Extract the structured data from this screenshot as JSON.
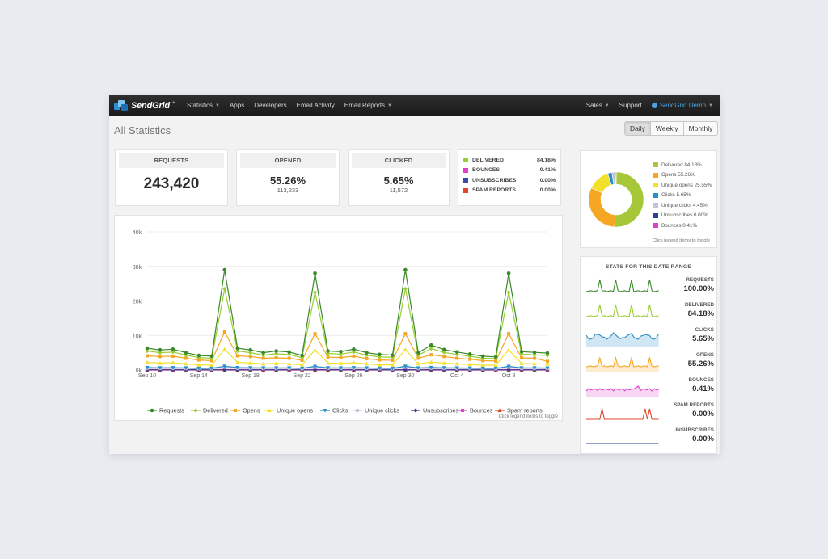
{
  "navbar": {
    "brand": "SendGrid",
    "brand_plus": "+",
    "left_items": [
      "Statistics",
      "Apps",
      "Developers",
      "Email Activity",
      "Email Reports"
    ],
    "right_items": [
      "Sales",
      "Support"
    ],
    "user": "SendGrid Demo"
  },
  "page": {
    "title": "All Statistics",
    "range_buttons": [
      "Daily",
      "Weekly",
      "Monthly"
    ],
    "active_range": "Daily"
  },
  "stats": {
    "requests": {
      "label": "REQUESTS",
      "value": "243,420"
    },
    "opened": {
      "label": "OPENED",
      "value": "55.26%",
      "count": "113,233"
    },
    "clicked": {
      "label": "CLICKED",
      "value": "5.65%",
      "count": "11,572"
    }
  },
  "status_legend": [
    {
      "label": "DELIVERED",
      "value": "84.18%",
      "color": "#9acd32"
    },
    {
      "label": "BOUNCES",
      "value": "0.41%",
      "color": "#e040c8"
    },
    {
      "label": "UNSUBSCRIBES",
      "value": "0.00%",
      "color": "#3b4aa8"
    },
    {
      "label": "SPAM REPORTS",
      "value": "0.00%",
      "color": "#e0442a"
    }
  ],
  "pie": {
    "items": [
      {
        "label": "Delivered 84.18%",
        "color": "#a6c838"
      },
      {
        "label": "Opens 55.26%",
        "color": "#f5a623"
      },
      {
        "label": "Unique opens 25.55%",
        "color": "#f3e02b"
      },
      {
        "label": "Clicks 5.65%",
        "color": "#2a8fc9"
      },
      {
        "label": "Unique clicks 4.45%",
        "color": "#c0c4d8"
      },
      {
        "label": "Unsubscribes 0.00%",
        "color": "#2c3e8f"
      },
      {
        "label": "Bounces 0.41%",
        "color": "#e040c8"
      }
    ],
    "hint": "Click legend items to toggle"
  },
  "range_panel": {
    "title": "STATS FOR THIS DATE RANGE",
    "rows": [
      {
        "name": "REQUESTS",
        "value": "100.00%",
        "color": "#3a8a2a"
      },
      {
        "name": "DELIVERED",
        "value": "84.18%",
        "color": "#9acd32"
      },
      {
        "name": "CLICKS",
        "value": "5.65%",
        "color": "#2a8fc9"
      },
      {
        "name": "OPENS",
        "value": "55.26%",
        "color": "#f5a623"
      },
      {
        "name": "BOUNCES",
        "value": "0.41%",
        "color": "#e040c8"
      },
      {
        "name": "SPAM REPORTS",
        "value": "0.00%",
        "color": "#e0442a"
      },
      {
        "name": "UNSUBSCRIBES",
        "value": "0.00%",
        "color": "#2c3e8f"
      }
    ]
  },
  "chart_data": {
    "type": "line",
    "ylim": [
      0,
      40000
    ],
    "yticks": [
      "0k",
      "10k",
      "20k",
      "30k",
      "40k"
    ],
    "xticks": [
      "Sep 10",
      "Sep 14",
      "Sep 18",
      "Sep 22",
      "Sep 26",
      "Sep 30",
      "Oct 4",
      "Oct 8"
    ],
    "hint": "Click legend items to toggle",
    "series": [
      {
        "name": "Requests",
        "color": "#3a8a2a",
        "marker": "circle",
        "values": [
          6300,
          5800,
          6000,
          5000,
          4200,
          4000,
          29000,
          6300,
          5800,
          5000,
          5500,
          5200,
          4200,
          28000,
          5500,
          5300,
          6000,
          5000,
          4500,
          4300,
          29000,
          5000,
          7200,
          5900,
          5200,
          4600,
          4000,
          3800,
          28000,
          5300,
          5100,
          4900
        ]
      },
      {
        "name": "Delivered",
        "color": "#9acd32",
        "marker": "diamond",
        "values": [
          5500,
          5000,
          5200,
          4300,
          3600,
          3400,
          23500,
          5500,
          5000,
          4300,
          4700,
          4500,
          3600,
          22500,
          4800,
          4600,
          5200,
          4300,
          3800,
          3700,
          23500,
          4300,
          6200,
          5100,
          4500,
          4000,
          3400,
          3300,
          22500,
          4600,
          4400,
          4200
        ]
      },
      {
        "name": "Opens",
        "color": "#f5a623",
        "marker": "square",
        "values": [
          4100,
          3900,
          4000,
          3400,
          2900,
          2700,
          11000,
          4100,
          3900,
          3400,
          3500,
          3400,
          2800,
          10500,
          3700,
          3600,
          4000,
          3300,
          2900,
          2800,
          10500,
          3400,
          4400,
          3900,
          3400,
          3100,
          2700,
          2600,
          10500,
          3500,
          3400,
          2500
        ]
      },
      {
        "name": "Unique opens",
        "color": "#f3e02b",
        "marker": "triangle",
        "values": [
          2200,
          2000,
          2100,
          1800,
          1500,
          1400,
          6000,
          2200,
          2000,
          1800,
          1900,
          1800,
          1500,
          5800,
          2000,
          1900,
          2100,
          1800,
          1500,
          1500,
          5900,
          1800,
          2300,
          2000,
          1800,
          1600,
          1400,
          1400,
          5800,
          1900,
          1800,
          1700
        ]
      },
      {
        "name": "Clicks",
        "color": "#2a8fc9",
        "marker": "triangle-down",
        "values": [
          700,
          650,
          680,
          600,
          500,
          480,
          1100,
          700,
          650,
          600,
          620,
          600,
          500,
          1050,
          640,
          620,
          680,
          600,
          520,
          500,
          1080,
          600,
          720,
          650,
          600,
          560,
          480,
          470,
          1050,
          620,
          600,
          580
        ]
      },
      {
        "name": "Unique clicks",
        "color": "#c0c4d8",
        "marker": "circle",
        "values": [
          500,
          480,
          490,
          430,
          360,
          350,
          850,
          500,
          480,
          430,
          450,
          430,
          360,
          820,
          470,
          450,
          490,
          430,
          370,
          360,
          840,
          430,
          520,
          480,
          430,
          400,
          350,
          340,
          820,
          450,
          430,
          420
        ]
      },
      {
        "name": "Unsubscribes",
        "color": "#2c3e8f",
        "marker": "diamond",
        "values": [
          40,
          40,
          40,
          40,
          40,
          40,
          40,
          40,
          40,
          40,
          40,
          40,
          40,
          40,
          40,
          40,
          40,
          40,
          40,
          40,
          40,
          40,
          40,
          40,
          40,
          40,
          40,
          40,
          40,
          40,
          40,
          40
        ]
      },
      {
        "name": "Bounces",
        "color": "#e040c8",
        "marker": "square",
        "values": [
          120,
          110,
          115,
          100,
          90,
          85,
          160,
          120,
          110,
          100,
          105,
          100,
          90,
          155,
          110,
          105,
          115,
          100,
          90,
          88,
          158,
          100,
          125,
          112,
          100,
          95,
          85,
          82,
          155,
          105,
          100,
          98
        ]
      },
      {
        "name": "Spam reports",
        "color": "#e0442a",
        "marker": "triangle",
        "values": [
          10,
          10,
          10,
          10,
          10,
          10,
          10,
          10,
          10,
          10,
          10,
          10,
          10,
          10,
          10,
          10,
          10,
          10,
          10,
          10,
          10,
          10,
          10,
          10,
          10,
          10,
          10,
          10,
          10,
          10,
          10,
          10
        ]
      }
    ]
  }
}
